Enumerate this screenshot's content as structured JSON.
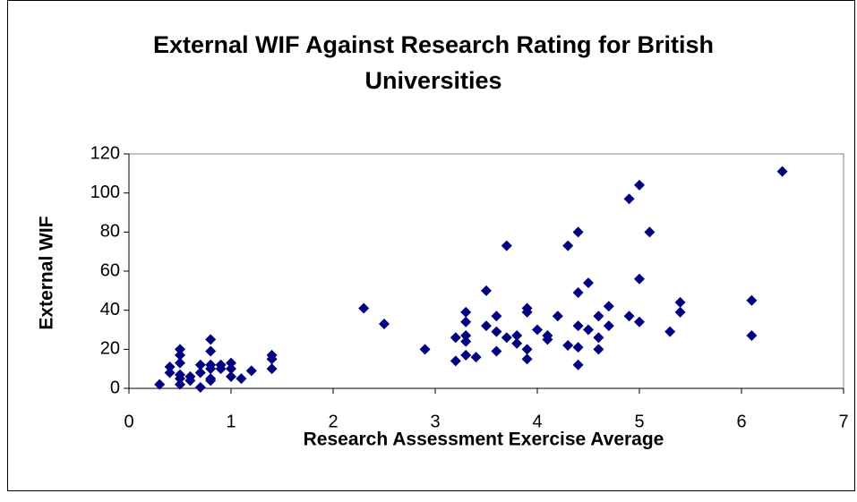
{
  "chart_data": {
    "type": "scatter",
    "title": "External WIF Against Research Rating for British Universities",
    "xlabel": "Research Assessment Exercise Average",
    "ylabel": "External WIF",
    "xlim": [
      0,
      7
    ],
    "xticks": [
      0,
      1,
      2,
      3,
      4,
      5,
      6,
      7
    ],
    "ylim": [
      0,
      120
    ],
    "yticks": [
      0,
      20,
      40,
      60,
      80,
      100,
      120
    ],
    "grid": false,
    "series": [
      {
        "color": "#000080",
        "x": [
          0.3,
          0.4,
          0.4,
          0.5,
          0.5,
          0.5,
          0.5,
          0.5,
          0.5,
          0.6,
          0.6,
          0.7,
          0.7,
          0.7,
          0.8,
          0.8,
          0.8,
          0.8,
          0.8,
          0.8,
          0.9,
          0.9,
          1.0,
          1.0,
          1.0,
          1.1,
          1.2,
          1.4,
          1.4,
          1.4,
          2.3,
          2.5,
          2.9,
          3.2,
          3.2,
          3.3,
          3.3,
          3.3,
          3.3,
          3.3,
          3.4,
          3.5,
          3.5,
          3.6,
          3.6,
          3.6,
          3.7,
          3.7,
          3.8,
          3.8,
          3.9,
          3.9,
          3.9,
          3.9,
          4.0,
          4.1,
          4.1,
          4.2,
          4.3,
          4.3,
          4.4,
          4.4,
          4.4,
          4.4,
          4.4,
          4.5,
          4.5,
          4.6,
          4.6,
          4.6,
          4.7,
          4.7,
          4.9,
          4.9,
          5.0,
          5.0,
          5.0,
          5.1,
          5.3,
          5.4,
          5.4,
          6.1,
          6.1,
          6.4
        ],
        "values": [
          2,
          11,
          8,
          7,
          20,
          17,
          13,
          5,
          2,
          4,
          6,
          12,
          0.5,
          8,
          25,
          19,
          12,
          10,
          5,
          4,
          12,
          10,
          13,
          10,
          6,
          5,
          9,
          17,
          15,
          10,
          41,
          33,
          20,
          26,
          14,
          39,
          34,
          27,
          24,
          17,
          16,
          50,
          32,
          37,
          29,
          19,
          73,
          26,
          27,
          23,
          41,
          39,
          20,
          15,
          30,
          27,
          25,
          37,
          73,
          22,
          80,
          49,
          32,
          21,
          12,
          54,
          30,
          37,
          26,
          20,
          42,
          32,
          97,
          37,
          104,
          56,
          34,
          80,
          29,
          44,
          39,
          45,
          27,
          111
        ]
      }
    ]
  }
}
